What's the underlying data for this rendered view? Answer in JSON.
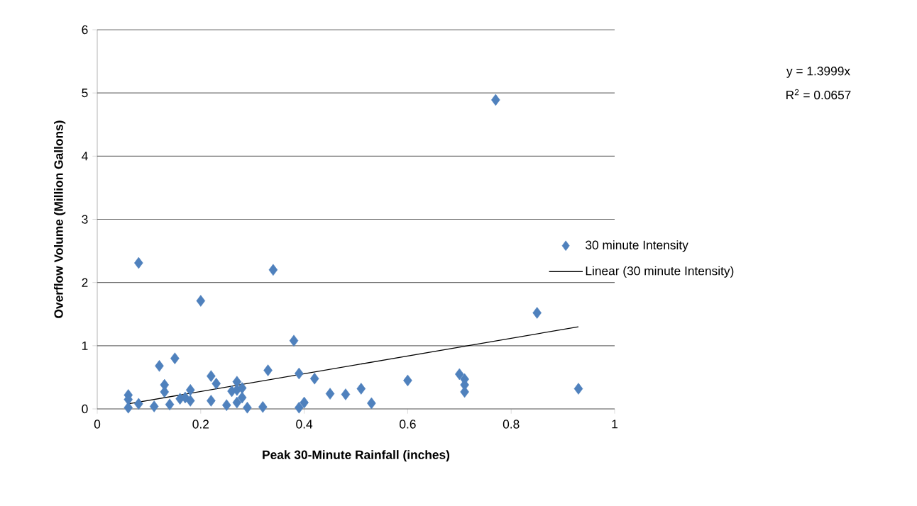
{
  "chart_data": {
    "type": "scatter",
    "xlabel": "Peak 30-Minute Rainfall (inches)",
    "ylabel": "Overflow Volume (Million Gallons)",
    "xlim": [
      0,
      1
    ],
    "xticks": [
      0,
      0.2,
      0.4,
      0.6,
      0.8,
      1
    ],
    "ylim": [
      0,
      6
    ],
    "yticks": [
      0,
      1,
      2,
      3,
      4,
      5,
      6
    ],
    "grid": "y",
    "legend": "right",
    "annotations": [
      "y = 1.3999x",
      "R$^{2}$ = 0.0657"
    ],
    "series": [
      {
        "name": "30 minute Intensity",
        "marker": "diamond",
        "color": "#4f81bd",
        "x": [
          0.06,
          0.06,
          0.06,
          0.08,
          0.08,
          0.11,
          0.12,
          0.13,
          0.13,
          0.14,
          0.15,
          0.16,
          0.17,
          0.18,
          0.18,
          0.2,
          0.22,
          0.22,
          0.23,
          0.25,
          0.26,
          0.27,
          0.27,
          0.28,
          0.28,
          0.27,
          0.29,
          0.32,
          0.33,
          0.34,
          0.38,
          0.39,
          0.39,
          0.4,
          0.42,
          0.45,
          0.48,
          0.51,
          0.53,
          0.6,
          0.7,
          0.71,
          0.71,
          0.71,
          0.77,
          0.85,
          0.93
        ],
        "values": [
          0.22,
          0.15,
          0.02,
          0.08,
          2.31,
          0.04,
          0.68,
          0.38,
          0.27,
          0.07,
          0.8,
          0.16,
          0.18,
          0.3,
          0.13,
          1.71,
          0.52,
          0.13,
          0.4,
          0.06,
          0.28,
          0.43,
          0.1,
          0.33,
          0.18,
          0.3,
          0.02,
          0.03,
          0.61,
          2.2,
          1.08,
          0.56,
          0.02,
          0.1,
          0.48,
          0.24,
          0.23,
          0.32,
          0.09,
          0.45,
          0.55,
          0.47,
          0.38,
          0.27,
          4.89,
          1.52,
          0.32
        ]
      },
      {
        "name": "Linear (30 minute Intensity)",
        "type": "line",
        "marker": "none",
        "line_style": "solid",
        "color": "#000000",
        "x": [
          0.06,
          0.93
        ],
        "values": [
          0.08,
          1.3
        ]
      }
    ]
  }
}
